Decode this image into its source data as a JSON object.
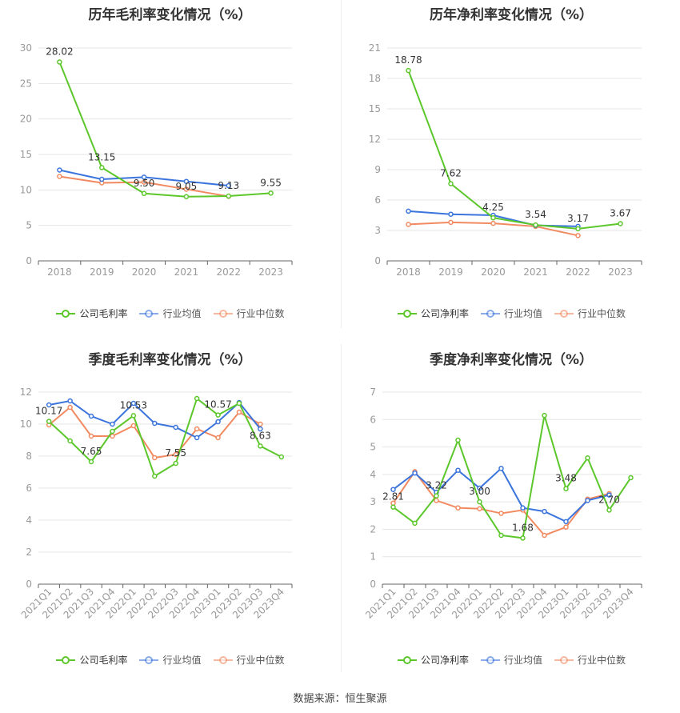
{
  "colors": {
    "company": "#5cc72b",
    "industry_avg": "#3b74dc",
    "industry_median": "#f28a61",
    "grid": "#e6e6e6",
    "axis_text": "#999999"
  },
  "legend": {
    "company_gross": "公司毛利率",
    "company_net": "公司净利率",
    "industry_avg": "行业均值",
    "industry_median": "行业中位数"
  },
  "source_text": "数据来源：恒生聚源",
  "chart_data": [
    {
      "id": "annual-gross",
      "type": "line",
      "title": "历年毛利率变化情况（%）",
      "categories": [
        "2018",
        "2019",
        "2020",
        "2021",
        "2022",
        "2023"
      ],
      "ylim": [
        0,
        30
      ],
      "yticks": [
        0,
        5,
        10,
        15,
        20,
        25,
        30
      ],
      "series": [
        {
          "name": "公司毛利率",
          "key": "company",
          "values": [
            28.02,
            13.15,
            9.5,
            9.05,
            9.13,
            9.55
          ]
        },
        {
          "name": "行业均值",
          "key": "avg",
          "values": [
            12.8,
            11.5,
            11.8,
            11.2,
            10.6,
            null
          ]
        },
        {
          "name": "行业中位数",
          "key": "median",
          "values": [
            11.9,
            11.0,
            11.1,
            10.1,
            9.1,
            null
          ]
        }
      ],
      "data_labels": [
        "28.02",
        "13.15",
        "9.50",
        "9.05",
        "9.13",
        "9.55"
      ],
      "label_indices": [
        0,
        1,
        2,
        3,
        4,
        5
      ]
    },
    {
      "id": "annual-net",
      "type": "line",
      "title": "历年净利率变化情况（%）",
      "categories": [
        "2018",
        "2019",
        "2020",
        "2021",
        "2022",
        "2023"
      ],
      "ylim": [
        0,
        21
      ],
      "yticks": [
        0,
        3,
        6,
        9,
        12,
        15,
        18,
        21
      ],
      "series": [
        {
          "name": "公司净利率",
          "key": "company",
          "values": [
            18.78,
            7.62,
            4.25,
            3.54,
            3.17,
            3.67
          ]
        },
        {
          "name": "行业均值",
          "key": "avg",
          "values": [
            4.9,
            4.6,
            4.5,
            3.5,
            3.4,
            null
          ]
        },
        {
          "name": "行业中位数",
          "key": "median",
          "values": [
            3.6,
            3.8,
            3.7,
            3.4,
            2.5,
            null
          ]
        }
      ],
      "data_labels": [
        "18.78",
        "7.62",
        "4.25",
        "3.54",
        "3.17",
        "3.67"
      ],
      "label_indices": [
        0,
        1,
        2,
        3,
        4,
        5
      ]
    },
    {
      "id": "quarterly-gross",
      "type": "line",
      "title": "季度毛利率变化情况（%）",
      "categories": [
        "2021Q1",
        "2021Q2",
        "2021Q3",
        "2021Q4",
        "2022Q1",
        "2022Q2",
        "2022Q3",
        "2022Q4",
        "2023Q1",
        "2023Q2",
        "2023Q3",
        "2023Q4"
      ],
      "ylim": [
        0,
        12
      ],
      "yticks": [
        0,
        2,
        4,
        6,
        8,
        10,
        12
      ],
      "series": [
        {
          "name": "公司毛利率",
          "key": "company",
          "values": [
            10.17,
            8.95,
            7.65,
            9.55,
            10.53,
            6.75,
            7.55,
            11.6,
            10.57,
            11.3,
            8.63,
            7.95
          ]
        },
        {
          "name": "行业均值",
          "key": "avg",
          "values": [
            11.2,
            11.45,
            10.5,
            10.0,
            11.3,
            10.05,
            9.8,
            9.15,
            10.15,
            11.35,
            9.7,
            null
          ]
        },
        {
          "name": "行业中位数",
          "key": "median",
          "values": [
            9.95,
            11.05,
            9.25,
            9.25,
            9.9,
            7.9,
            8.1,
            9.7,
            9.15,
            10.75,
            10.0,
            null
          ]
        }
      ],
      "data_labels": [
        "10.17",
        "7.65",
        "10.53",
        "7.55",
        "10.57",
        "8.63"
      ],
      "label_indices": [
        0,
        2,
        4,
        6,
        8,
        10
      ]
    },
    {
      "id": "quarterly-net",
      "type": "line",
      "title": "季度净利率变化情况（%）",
      "categories": [
        "2021Q1",
        "2021Q2",
        "2021Q3",
        "2021Q4",
        "2022Q1",
        "2022Q2",
        "2022Q3",
        "2022Q4",
        "2023Q1",
        "2023Q2",
        "2023Q3",
        "2023Q4"
      ],
      "ylim": [
        0,
        7
      ],
      "yticks": [
        0,
        1,
        2,
        3,
        4,
        5,
        6,
        7
      ],
      "series": [
        {
          "name": "公司净利率",
          "key": "company",
          "values": [
            2.81,
            2.22,
            3.22,
            5.25,
            3.0,
            1.78,
            1.68,
            6.15,
            3.48,
            4.6,
            2.7,
            3.88
          ]
        },
        {
          "name": "行业均值",
          "key": "avg",
          "values": [
            3.45,
            4.05,
            3.35,
            4.15,
            3.5,
            4.22,
            2.78,
            2.65,
            2.28,
            3.05,
            3.25,
            null
          ]
        },
        {
          "name": "行业中位数",
          "key": "median",
          "values": [
            2.95,
            4.1,
            3.05,
            2.78,
            2.75,
            2.58,
            2.7,
            1.78,
            2.08,
            3.1,
            3.3,
            null
          ]
        }
      ],
      "data_labels": [
        "2.81",
        "3.22",
        "3.00",
        "1.68",
        "3.48",
        "2.70"
      ],
      "label_indices": [
        0,
        2,
        4,
        6,
        8,
        10
      ]
    }
  ]
}
